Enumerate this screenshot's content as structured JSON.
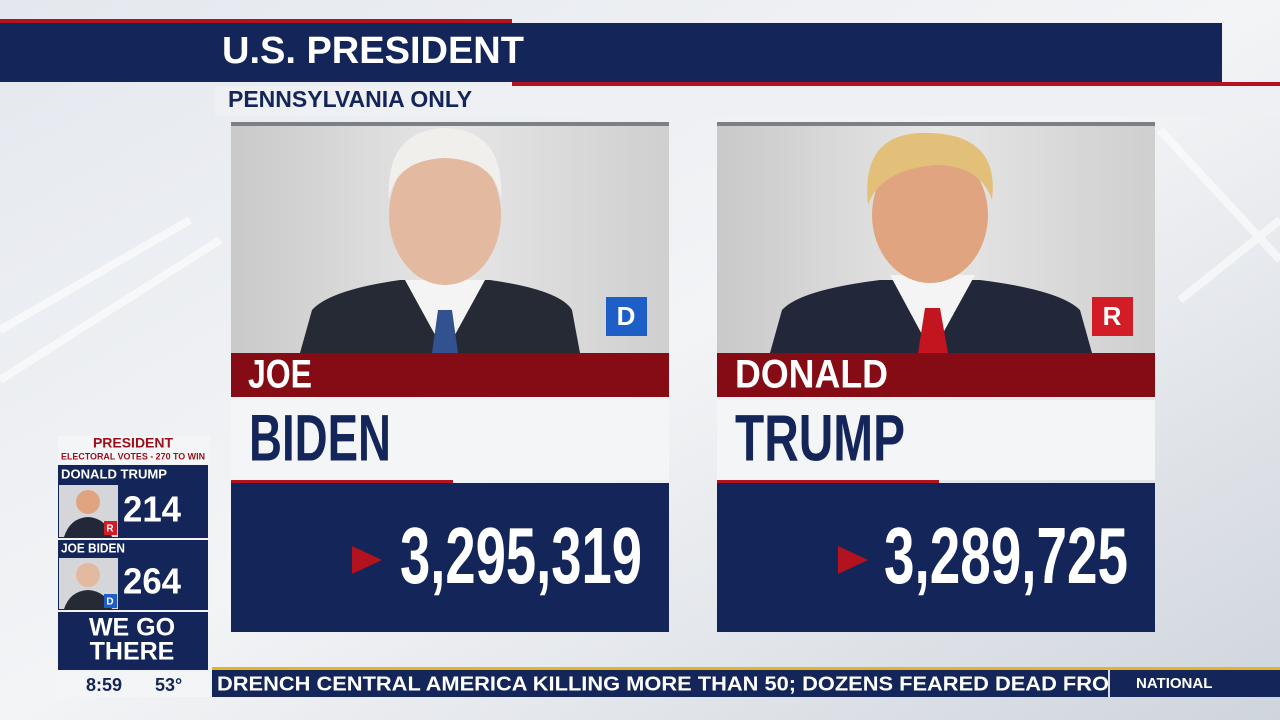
{
  "header": {
    "title": "U.S. PRESIDENT",
    "subtitle": "PENNSYLVANIA ONLY"
  },
  "candidates": [
    {
      "first_name": "JOE",
      "last_name": "BIDEN",
      "party": "D",
      "votes": "3,295,319"
    },
    {
      "first_name": "DONALD",
      "last_name": "TRUMP",
      "party": "R",
      "votes": "3,289,725"
    }
  ],
  "sidebar": {
    "title": "PRESIDENT",
    "subtitle": "ELECTORAL VOTES - 270 TO WIN",
    "candidates": [
      {
        "name": "DONALD TRUMP",
        "party": "R",
        "electoral_votes": "214"
      },
      {
        "name": "JOE BIDEN",
        "party": "D",
        "electoral_votes": "264"
      }
    ],
    "slogan_line1": "WE GO",
    "slogan_line2": "THERE",
    "time": "8:59",
    "temperature": "53°"
  },
  "ticker": {
    "text": "DRENCH CENTRAL AMERICA KILLING MORE THAN 50; DOZENS FEARED DEAD FRO",
    "label": "NATIONAL"
  }
}
